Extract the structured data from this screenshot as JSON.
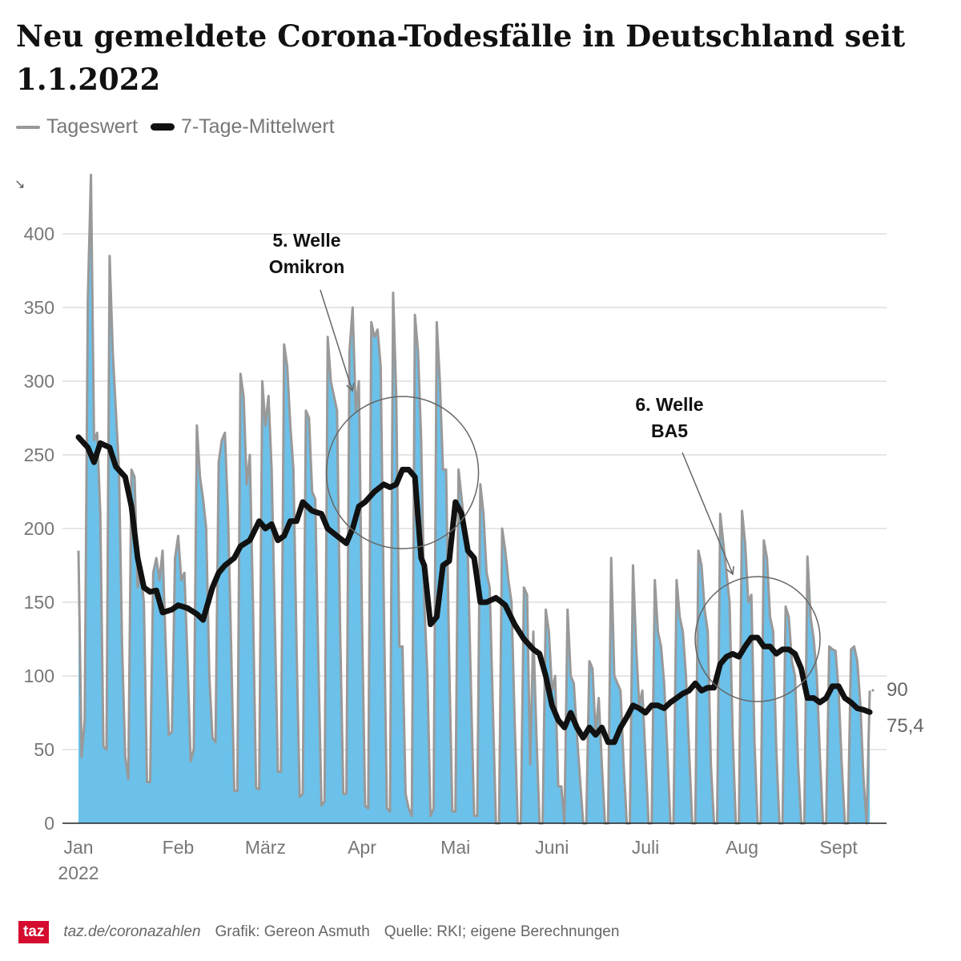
{
  "title": "Neu gemeldete Corona-Todesfälle in Deutschland seit 1.1.2022",
  "legend": {
    "daily": "Tageswert",
    "ma": "7-Tage-Mittelwert"
  },
  "footer": {
    "logo": "taz",
    "url": "taz.de/coronazahlen",
    "credit": "Grafik: Gereon Asmuth",
    "source": "Quelle: RKI; eigene Berechnungen"
  },
  "colors": {
    "area": "#6bc1ea",
    "daily_line": "#999999",
    "ma_line": "#111111",
    "grid": "#dddddd"
  },
  "chart_data": {
    "type": "line",
    "title": "Neu gemeldete Corona-Todesfälle in Deutschland seit 1.1.2022",
    "xlabel": "",
    "ylabel": "",
    "ylim": [
      0,
      450
    ],
    "y_ticks": [
      "0",
      "50",
      "100",
      "150",
      "200",
      "250",
      "300",
      "350",
      "400"
    ],
    "x_ticks": [
      {
        "label": "Jan",
        "sub": "2022",
        "day": 0
      },
      {
        "label": "Feb",
        "day": 31
      },
      {
        "label": "März",
        "day": 59
      },
      {
        "label": "Apr",
        "day": 90
      },
      {
        "label": "Mai",
        "day": 120
      },
      {
        "label": "Juni",
        "day": 151
      },
      {
        "label": "Juli",
        "day": 181
      },
      {
        "label": "Aug",
        "day": 212
      },
      {
        "label": "Sept",
        "day": 243
      }
    ],
    "daily_start": "2022-01-01",
    "daily": [
      185,
      45,
      70,
      355,
      440,
      260,
      265,
      210,
      52,
      50,
      385,
      320,
      280,
      240,
      120,
      45,
      30,
      240,
      235,
      160,
      170,
      150,
      28,
      28,
      170,
      180,
      165,
      185,
      120,
      60,
      62,
      180,
      195,
      165,
      170,
      110,
      42,
      50,
      270,
      235,
      220,
      200,
      100,
      58,
      55,
      245,
      260,
      265,
      210,
      120,
      22,
      22,
      305,
      290,
      230,
      250,
      150,
      24,
      23,
      300,
      270,
      290,
      240,
      140,
      35,
      35,
      325,
      310,
      270,
      240,
      120,
      18,
      20,
      280,
      275,
      225,
      220,
      110,
      12,
      15,
      330,
      300,
      290,
      280,
      130,
      20,
      20,
      320,
      350,
      280,
      300,
      140,
      12,
      10,
      340,
      330,
      335,
      310,
      150,
      10,
      8,
      360,
      290,
      120,
      120,
      20,
      10,
      5,
      345,
      320,
      260,
      150,
      100,
      5,
      10,
      340,
      300,
      240,
      240,
      110,
      8,
      8,
      240,
      220,
      200,
      180,
      90,
      5,
      5,
      230,
      210,
      170,
      160,
      80,
      0,
      0,
      200,
      185,
      165,
      150,
      70,
      0,
      0,
      160,
      155,
      40,
      130,
      60,
      0,
      0,
      145,
      130,
      90,
      100,
      25,
      25,
      0,
      145,
      100,
      95,
      60,
      30,
      0,
      0,
      110,
      105,
      60,
      85,
      40,
      0,
      0,
      180,
      100,
      95,
      90,
      40,
      0,
      0,
      175,
      120,
      80,
      90,
      45,
      0,
      0,
      165,
      130,
      120,
      95,
      50,
      0,
      0,
      165,
      140,
      130,
      100,
      50,
      0,
      0,
      185,
      175,
      145,
      130,
      40,
      0,
      0,
      210,
      190,
      170,
      150,
      60,
      0,
      0,
      212,
      190,
      150,
      155,
      55,
      0,
      0,
      192,
      180,
      140,
      130,
      50,
      0,
      0,
      147,
      140,
      110,
      100,
      40,
      0,
      0,
      181,
      140,
      125,
      100,
      45,
      0,
      0,
      120,
      118,
      117,
      90,
      40,
      0,
      0,
      118,
      120,
      110,
      80,
      30,
      0,
      90
    ],
    "ma_points": [
      [
        0,
        262
      ],
      [
        3,
        255
      ],
      [
        5,
        245
      ],
      [
        7,
        258
      ],
      [
        10,
        255
      ],
      [
        12,
        242
      ],
      [
        15,
        235
      ],
      [
        17,
        215
      ],
      [
        19,
        180
      ],
      [
        21,
        160
      ],
      [
        23,
        157
      ],
      [
        25,
        158
      ],
      [
        27,
        143
      ],
      [
        30,
        145
      ],
      [
        32,
        148
      ],
      [
        35,
        146
      ],
      [
        38,
        142
      ],
      [
        40,
        138
      ],
      [
        43,
        160
      ],
      [
        45,
        170
      ],
      [
        47,
        175
      ],
      [
        50,
        180
      ],
      [
        52,
        188
      ],
      [
        55,
        192
      ],
      [
        58,
        205
      ],
      [
        60,
        200
      ],
      [
        62,
        203
      ],
      [
        64,
        192
      ],
      [
        66,
        195
      ],
      [
        68,
        205
      ],
      [
        70,
        205
      ],
      [
        72,
        218
      ],
      [
        75,
        212
      ],
      [
        78,
        210
      ],
      [
        80,
        200
      ],
      [
        83,
        195
      ],
      [
        86,
        190
      ],
      [
        88,
        200
      ],
      [
        90,
        215
      ],
      [
        92,
        218
      ],
      [
        95,
        225
      ],
      [
        98,
        230
      ],
      [
        100,
        228
      ],
      [
        102,
        230
      ],
      [
        104,
        240
      ],
      [
        106,
        240
      ],
      [
        108,
        235
      ],
      [
        110,
        180
      ],
      [
        111,
        175
      ],
      [
        113,
        135
      ],
      [
        115,
        140
      ],
      [
        117,
        175
      ],
      [
        119,
        178
      ],
      [
        121,
        218
      ],
      [
        123,
        210
      ],
      [
        125,
        185
      ],
      [
        127,
        180
      ],
      [
        129,
        150
      ],
      [
        131,
        150
      ],
      [
        134,
        153
      ],
      [
        137,
        148
      ],
      [
        140,
        135
      ],
      [
        143,
        125
      ],
      [
        146,
        118
      ],
      [
        148,
        115
      ],
      [
        150,
        100
      ],
      [
        152,
        80
      ],
      [
        154,
        70
      ],
      [
        156,
        65
      ],
      [
        158,
        75
      ],
      [
        160,
        65
      ],
      [
        162,
        58
      ],
      [
        164,
        65
      ],
      [
        166,
        60
      ],
      [
        168,
        65
      ],
      [
        170,
        55
      ],
      [
        172,
        55
      ],
      [
        174,
        65
      ],
      [
        176,
        72
      ],
      [
        178,
        80
      ],
      [
        180,
        78
      ],
      [
        182,
        75
      ],
      [
        184,
        80
      ],
      [
        186,
        80
      ],
      [
        188,
        78
      ],
      [
        190,
        82
      ],
      [
        192,
        85
      ],
      [
        194,
        88
      ],
      [
        196,
        90
      ],
      [
        198,
        95
      ],
      [
        200,
        90
      ],
      [
        202,
        92
      ],
      [
        204,
        92
      ],
      [
        206,
        108
      ],
      [
        208,
        113
      ],
      [
        210,
        115
      ],
      [
        212,
        113
      ],
      [
        214,
        120
      ],
      [
        216,
        126
      ],
      [
        218,
        126
      ],
      [
        220,
        120
      ],
      [
        222,
        120
      ],
      [
        224,
        115
      ],
      [
        226,
        118
      ],
      [
        228,
        118
      ],
      [
        230,
        115
      ],
      [
        232,
        105
      ],
      [
        234,
        85
      ],
      [
        236,
        85
      ],
      [
        238,
        82
      ],
      [
        240,
        85
      ],
      [
        242,
        93
      ],
      [
        244,
        93
      ],
      [
        246,
        85
      ],
      [
        248,
        82
      ],
      [
        250,
        78
      ],
      [
        252,
        77
      ],
      [
        254,
        75.4
      ]
    ],
    "end_labels": {
      "daily": "90",
      "ma": "75,4"
    },
    "annotations": [
      {
        "line1": "5. Welle",
        "line2": "Omikron",
        "day": 104,
        "value": 238
      },
      {
        "line1": "6. Welle",
        "line2": "BA5",
        "day": 218,
        "value": 125
      }
    ],
    "legend_position": "top-left"
  }
}
